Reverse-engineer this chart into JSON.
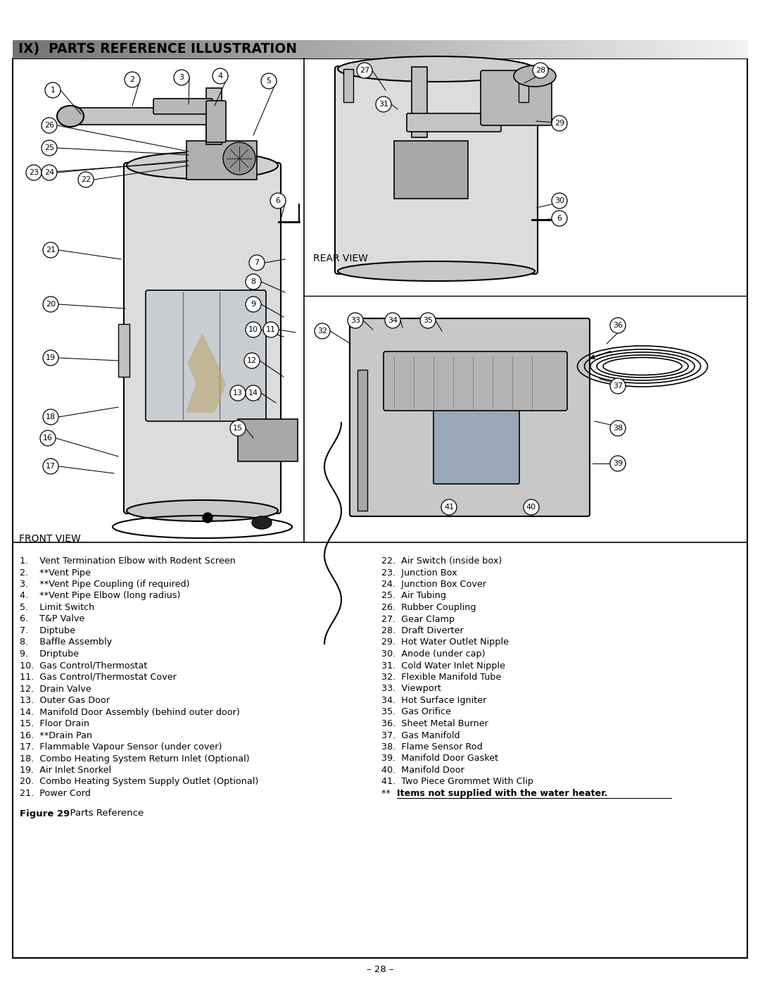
{
  "title": "IX)  PARTS REFERENCE ILLUSTRATION",
  "page_bg": "#ffffff",
  "figure_caption_bold": "Figure 29",
  "figure_caption_normal": "  Parts Reference",
  "page_number": "– 28 –",
  "front_view_label": "FRONT VIEW",
  "rear_view_label": "REAR VIEW",
  "items_left": [
    "1.    Vent Termination Elbow with Rodent Screen",
    "2.    **Vent Pipe",
    "3.    **Vent Pipe Coupling (if required)",
    "4.    **Vent Pipe Elbow (long radius)",
    "5.    Limit Switch",
    "6.    T&P Valve",
    "7.    Diptube",
    "8.    Baffle Assembly",
    "9.    Driptube",
    "10.  Gas Control/Thermostat",
    "11.  Gas Control/Thermostat Cover",
    "12.  Drain Valve",
    "13.  Outer Gas Door",
    "14.  Manifold Door Assembly (behind outer door)",
    "15.  Floor Drain",
    "16.  **Drain Pan",
    "17.  Flammable Vapour Sensor (under cover)",
    "18.  Combo Heating System Return Inlet (Optional)",
    "19.  Air Inlet Snorkel",
    "20.  Combo Heating System Supply Outlet (Optional)",
    "21.  Power Cord"
  ],
  "items_right": [
    "22.  Air Switch (inside box)",
    "23.  Junction Box",
    "24.  Junction Box Cover",
    "25.  Air Tubing",
    "26.  Rubber Coupling",
    "27.  Gear Clamp",
    "28.  Draft Diverter",
    "29.  Hot Water Outlet Nipple",
    "30.  Anode (under cap)",
    "31.  Cold Water Inlet Nipple",
    "32.  Flexible Manifold Tube",
    "33.  Viewport",
    "34.  Hot Surface Igniter",
    "35.  Gas Orifice",
    "36.  Sheet Metal Burner",
    "37.  Gas Manifold",
    "38.  Flame Sensor Rod",
    "39.  Manifold Door Gasket",
    "40.  Manifold Door",
    "41.  Two Piece Grommet With Clip",
    "**   Items not supplied with the water heater."
  ]
}
